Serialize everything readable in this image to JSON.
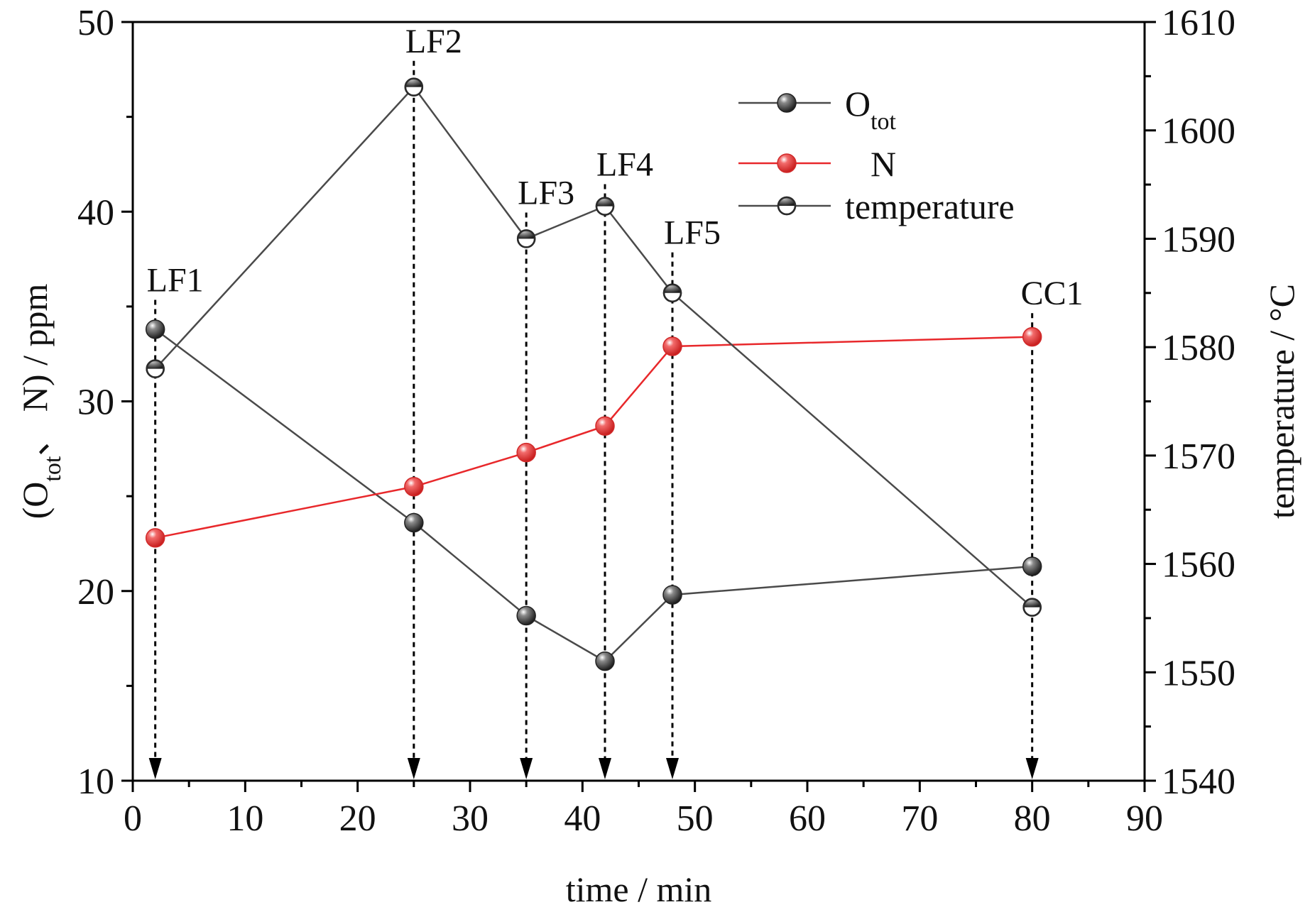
{
  "chart_data": {
    "type": "line",
    "xlabel": "time / min",
    "ylabel_left": "(O_tot、 N) / ppm",
    "ylabel_right": "temperature / °C",
    "xlim": [
      0,
      90
    ],
    "ylim_left": [
      10,
      50
    ],
    "ylim_right": [
      1540,
      1610
    ],
    "xticks": [
      "0",
      "10",
      "20",
      "30",
      "40",
      "50",
      "60",
      "70",
      "80",
      "90"
    ],
    "yticks_left": [
      "10",
      "20",
      "30",
      "40",
      "50"
    ],
    "yticks_right": [
      "1540",
      "1550",
      "1560",
      "1570",
      "1580",
      "1590",
      "1600",
      "1610"
    ],
    "grid": false,
    "legend_position": "top-right",
    "series": [
      {
        "name": "O",
        "sub": "tot",
        "axis": "left",
        "color": "#4a4a4a",
        "marker": "filled",
        "x": [
          2,
          25,
          35,
          42,
          48,
          80
        ],
        "values": [
          33.8,
          23.6,
          18.7,
          16.3,
          19.8,
          21.3
        ]
      },
      {
        "name": "N",
        "sub": "",
        "axis": "left",
        "color": "#e8282b",
        "marker": "filled",
        "x": [
          2,
          25,
          35,
          42,
          48,
          80
        ],
        "values": [
          22.8,
          25.5,
          27.3,
          28.7,
          32.9,
          33.4
        ]
      },
      {
        "name": "temperature",
        "sub": "",
        "axis": "right",
        "color": "#4a4a4a",
        "marker": "half",
        "x": [
          2,
          25,
          35,
          42,
          48,
          80
        ],
        "values": [
          1578,
          1604,
          1590,
          1593,
          1585,
          1556
        ]
      }
    ],
    "annotations": [
      {
        "text": "LF1",
        "x": 2,
        "ref_y_left": 35.8
      },
      {
        "text": "LF2",
        "x": 25,
        "ref_y_left": 48.4
      },
      {
        "text": "LF3",
        "x": 35,
        "ref_y_left": 40.4
      },
      {
        "text": "LF4",
        "x": 42,
        "ref_y_left": 41.9
      },
      {
        "text": "LF5",
        "x": 48,
        "ref_y_left": 38.3
      },
      {
        "text": "CC1",
        "x": 80,
        "ref_y_left": 35.1
      }
    ],
    "drop_lines_x": [
      2,
      25,
      35,
      42,
      48,
      80
    ]
  }
}
